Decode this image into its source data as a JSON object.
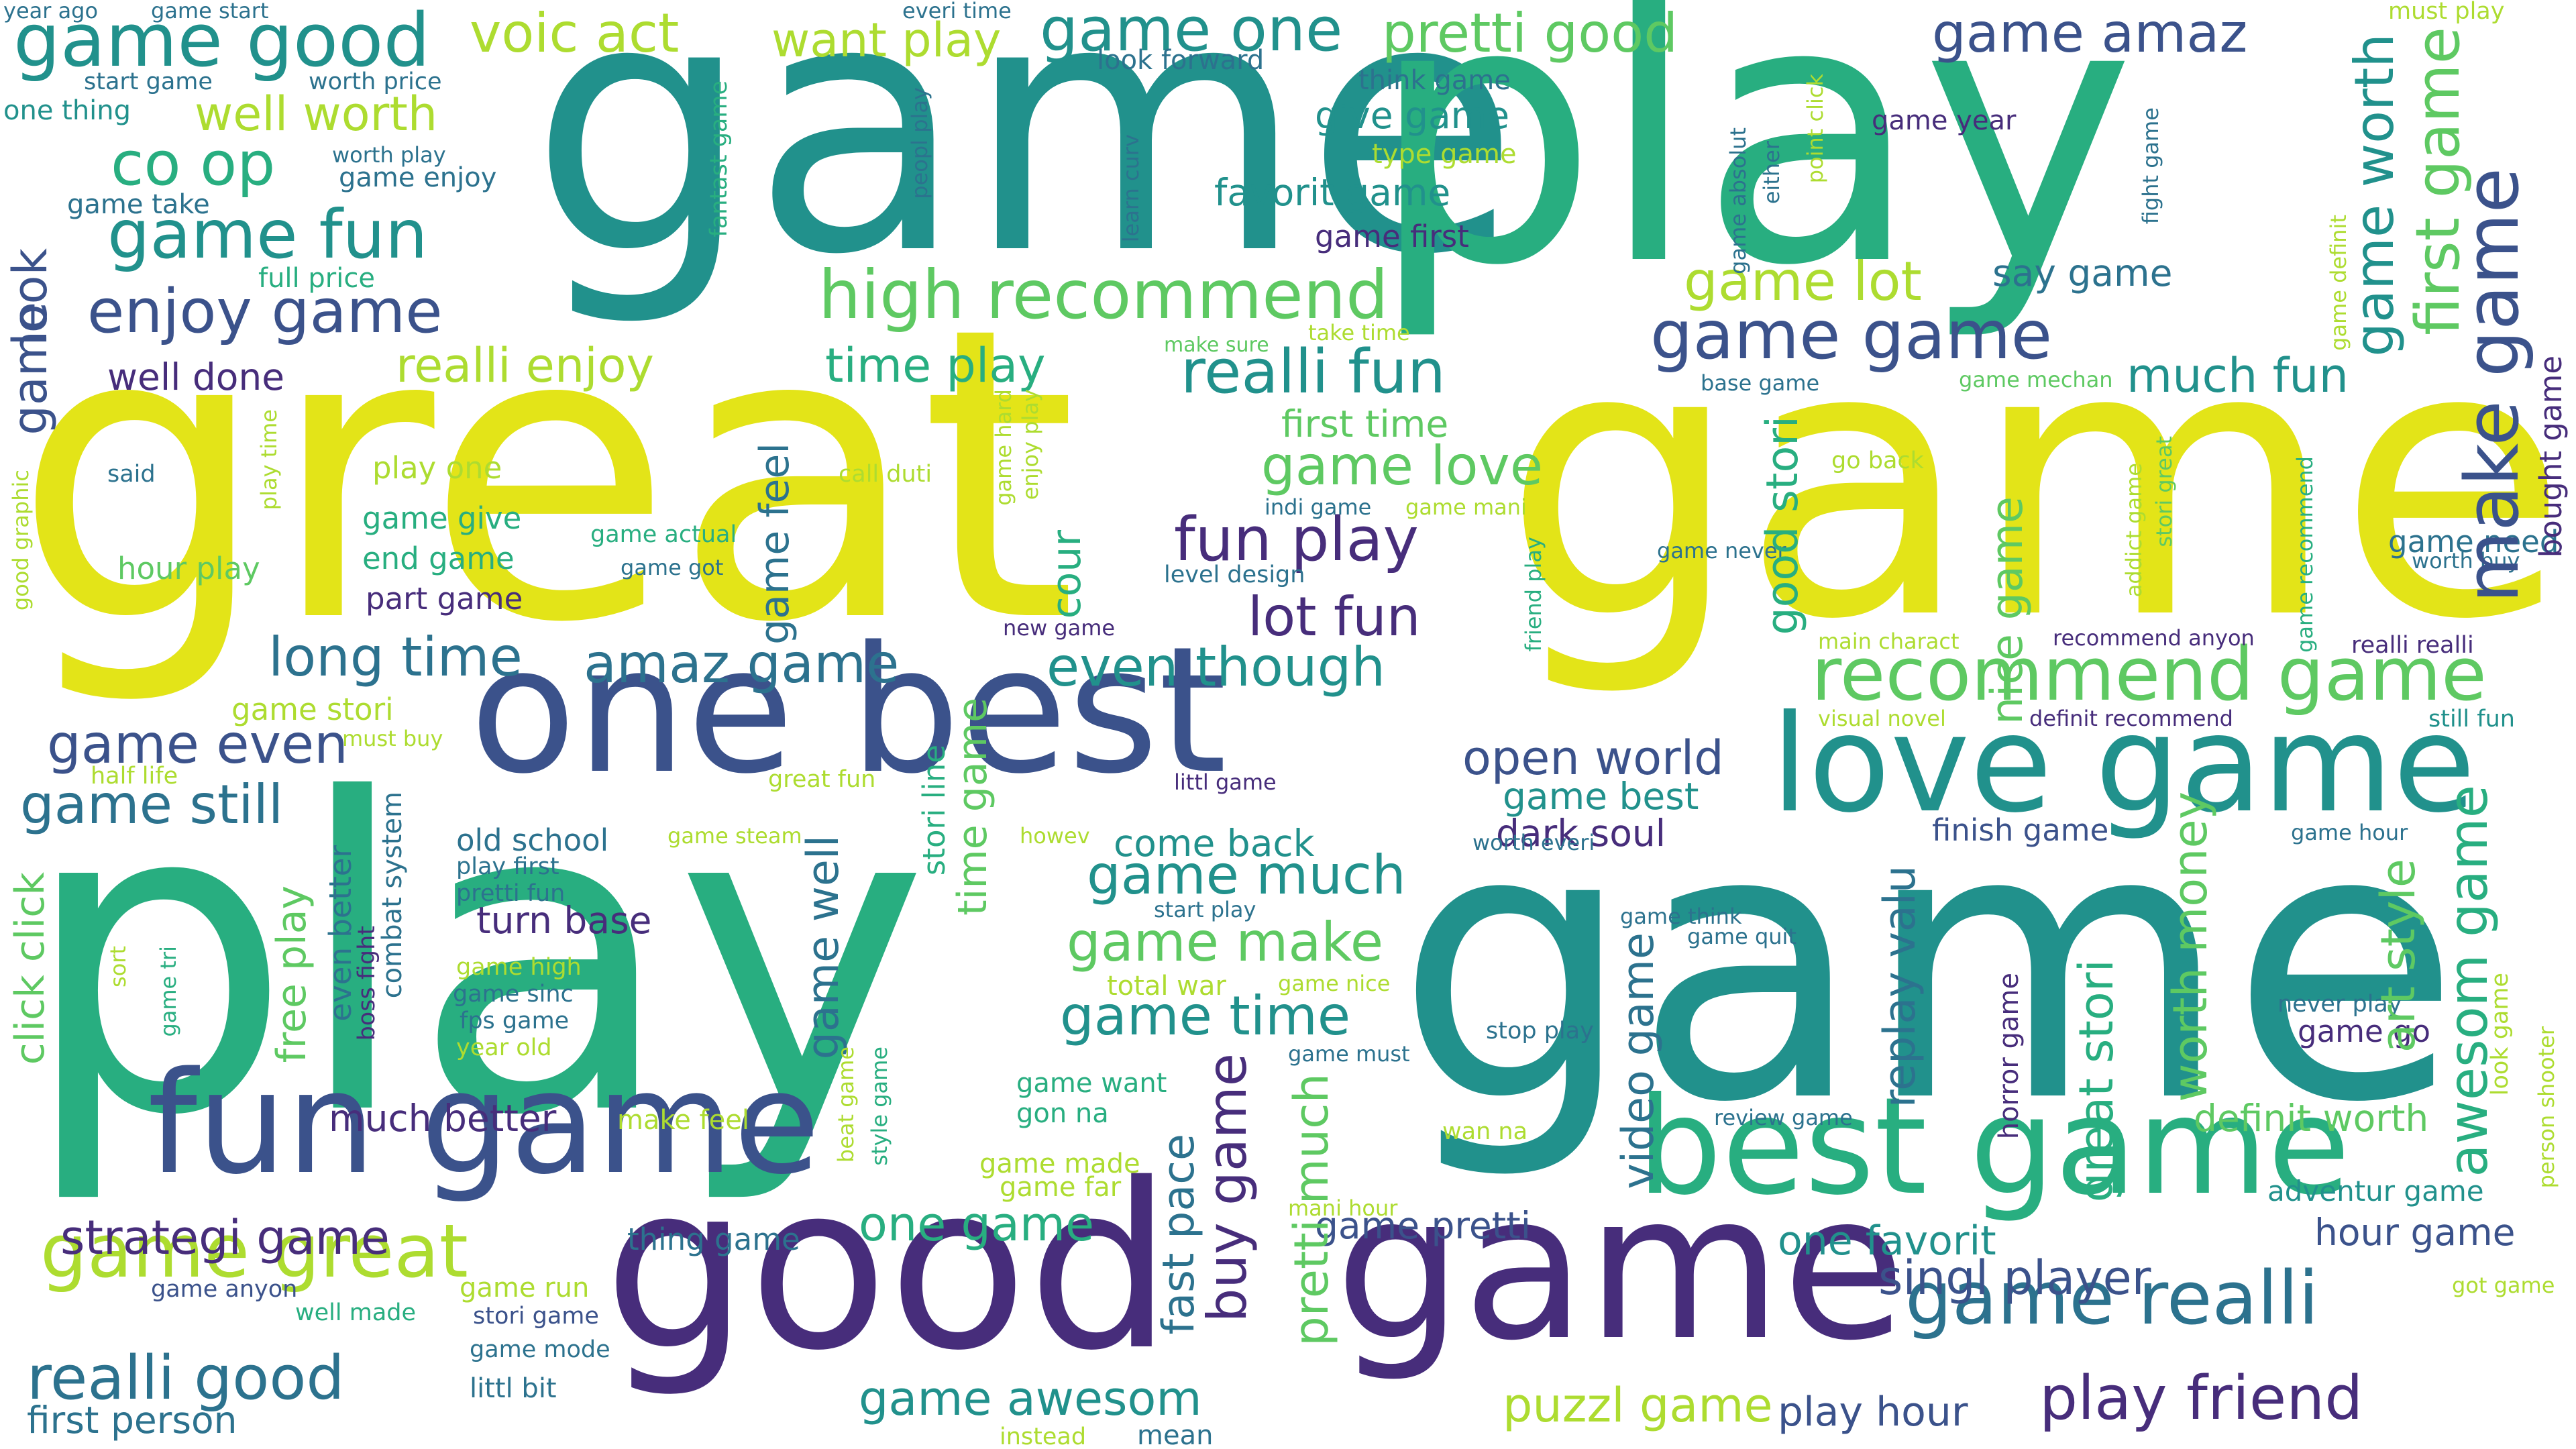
{
  "palette": {
    "dark_purple": "#472D7B",
    "indigo": "#3B528B",
    "steel_blue": "#2C728E",
    "teal": "#21918C",
    "green": "#28AE80",
    "light_green": "#5EC962",
    "lime": "#ADDC30",
    "yellow": "#E3E418"
  },
  "words": [
    {
      "text": "great",
      "color": "#E3E418",
      "size": 5
    },
    {
      "text": "game",
      "color": "#E3E418",
      "size": 5
    },
    {
      "text": "game",
      "color": "#21918C",
      "size": 5
    },
    {
      "text": "play",
      "color": "#28AE80",
      "size": 5
    },
    {
      "text": "play",
      "color": "#28AE80",
      "size": 5
    },
    {
      "text": "game",
      "color": "#21918C",
      "size": 5
    },
    {
      "text": "one best",
      "color": "#3B528B",
      "size": 4
    },
    {
      "text": "good",
      "color": "#472D7B",
      "size": 4
    },
    {
      "text": "game",
      "color": "#472D7B",
      "size": 4
    },
    {
      "text": "love game",
      "color": "#21918C",
      "size": 3
    },
    {
      "text": "best game",
      "color": "#28AE80",
      "size": 3
    },
    {
      "text": "fun game",
      "color": "#3B528B",
      "size": 3
    },
    {
      "text": "recommend game",
      "color": "#5EC962",
      "size": 2
    },
    {
      "text": "game great",
      "color": "#ADDC30",
      "size": 2
    },
    {
      "text": "game realli",
      "color": "#2C728E",
      "size": 2
    },
    {
      "text": "game good",
      "color": "#21918C",
      "size": 2
    },
    {
      "text": "high recommend",
      "color": "#5EC962",
      "size": 2
    },
    {
      "text": "game game",
      "color": "#3B528B",
      "size": 2
    },
    {
      "text": "game fun",
      "color": "#21918C",
      "size": 2
    },
    {
      "text": "play friend",
      "color": "#472D7B",
      "size": 2
    },
    {
      "text": "realli good",
      "color": "#2C728E",
      "size": 2
    },
    {
      "text": "game one",
      "color": "#21918C",
      "size": 2
    },
    {
      "text": "game amaz",
      "color": "#3B528B",
      "size": 2
    },
    {
      "text": "pretti good",
      "color": "#5EC962",
      "size": 2
    },
    {
      "text": "voic act",
      "color": "#ADDC30",
      "size": 2
    },
    {
      "text": "enjoy game",
      "color": "#3B528B",
      "size": 2
    },
    {
      "text": "co op",
      "color": "#28AE80",
      "size": 2
    },
    {
      "text": "well worth",
      "color": "#ADDC30",
      "size": 2
    },
    {
      "text": "realli fun",
      "color": "#21918C",
      "size": 2
    },
    {
      "text": "fun play",
      "color": "#472D7B",
      "size": 2
    },
    {
      "text": "lot fun",
      "color": "#472D7B",
      "size": 2
    },
    {
      "text": "amaz game",
      "color": "#2C728E",
      "size": 2
    },
    {
      "text": "even though",
      "color": "#21918C",
      "size": 2
    },
    {
      "text": "long time",
      "color": "#2C728E",
      "size": 2
    },
    {
      "text": "open world",
      "color": "#3B528B",
      "size": 2
    },
    {
      "text": "game love",
      "color": "#5EC962",
      "size": 2
    },
    {
      "text": "time play",
      "color": "#28AE80",
      "size": 2
    },
    {
      "text": "realli enjoy",
      "color": "#ADDC30",
      "size": 2
    },
    {
      "text": "game lot",
      "color": "#ADDC30",
      "size": 2
    },
    {
      "text": "much fun",
      "color": "#21918C",
      "size": 2
    },
    {
      "text": "game still",
      "color": "#2C728E",
      "size": 2
    },
    {
      "text": "game even",
      "color": "#3B528B",
      "size": 2
    },
    {
      "text": "game much",
      "color": "#21918C",
      "size": 2
    },
    {
      "text": "game make",
      "color": "#5EC962",
      "size": 2
    },
    {
      "text": "game time",
      "color": "#21918C",
      "size": 2
    },
    {
      "text": "strategi game",
      "color": "#472D7B",
      "size": 2
    },
    {
      "text": "singl player",
      "color": "#3B528B",
      "size": 2
    },
    {
      "text": "puzzl game",
      "color": "#ADDC30",
      "size": 2
    },
    {
      "text": "game awesom",
      "color": "#21918C",
      "size": 2
    },
    {
      "text": "one game",
      "color": "#28AE80",
      "size": 2
    },
    {
      "text": "game pretti",
      "color": "#3B528B",
      "size": 1
    },
    {
      "text": "one favorit",
      "color": "#21918C",
      "size": 1
    },
    {
      "text": "definit worth",
      "color": "#5EC962",
      "size": 1
    },
    {
      "text": "hour game",
      "color": "#3B528B",
      "size": 1
    },
    {
      "text": "play hour",
      "color": "#3B528B",
      "size": 1
    },
    {
      "text": "first person",
      "color": "#2C728E",
      "size": 1
    },
    {
      "text": "turn base",
      "color": "#472D7B",
      "size": 1
    },
    {
      "text": "much better",
      "color": "#472D7B",
      "size": 1
    },
    {
      "text": "dark soul",
      "color": "#472D7B",
      "size": 1
    },
    {
      "text": "come back",
      "color": "#21918C",
      "size": 1
    },
    {
      "text": "game best",
      "color": "#21918C",
      "size": 1
    },
    {
      "text": "well done",
      "color": "#472D7B",
      "size": 1
    },
    {
      "text": "favorit game",
      "color": "#21918C",
      "size": 1
    },
    {
      "text": "give game",
      "color": "#21918C",
      "size": 1
    },
    {
      "text": "first time",
      "color": "#5EC962",
      "size": 1
    },
    {
      "text": "say game",
      "color": "#2C728E",
      "size": 1
    },
    {
      "text": "game first",
      "color": "#472D7B",
      "size": 1
    },
    {
      "text": "game stori",
      "color": "#ADDC30",
      "size": 1
    },
    {
      "text": "finish game",
      "color": "#3B528B",
      "size": 1
    },
    {
      "text": "adventur game",
      "color": "#21918C",
      "size": 1
    },
    {
      "text": "part game",
      "color": "#472D7B",
      "size": 1
    },
    {
      "text": "end game",
      "color": "#28AE80",
      "size": 1
    },
    {
      "text": "hour play",
      "color": "#5EC962",
      "size": 1
    },
    {
      "text": "game give",
      "color": "#28AE80",
      "size": 1
    },
    {
      "text": "play one",
      "color": "#ADDC30",
      "size": 1
    },
    {
      "text": "game need",
      "color": "#2C728E",
      "size": 1
    },
    {
      "text": "still fun",
      "color": "#21918C",
      "size": 1
    },
    {
      "text": "realli realli",
      "color": "#472D7B",
      "size": 1
    },
    {
      "text": "game year",
      "color": "#472D7B",
      "size": 1
    },
    {
      "text": "game enjoy",
      "color": "#2C728E",
      "size": 1
    },
    {
      "text": "game take",
      "color": "#2C728E",
      "size": 1
    },
    {
      "text": "full price",
      "color": "#28AE80",
      "size": 1
    },
    {
      "text": "start game",
      "color": "#2C728E",
      "size": 1
    },
    {
      "text": "worth price",
      "color": "#2C728E",
      "size": 1
    },
    {
      "text": "one thing",
      "color": "#21918C",
      "size": 1
    },
    {
      "text": "year ago",
      "color": "#2C728E",
      "size": 1
    },
    {
      "text": "game start",
      "color": "#2C728E",
      "size": 1
    },
    {
      "text": "everi time",
      "color": "#2C728E",
      "size": 1
    },
    {
      "text": "worth play",
      "color": "#2C728E",
      "size": 1
    },
    {
      "text": "want play",
      "color": "#ADDC30",
      "size": 1
    },
    {
      "text": "look forward",
      "color": "#2C728E",
      "size": 1
    },
    {
      "text": "think game",
      "color": "#2C728E",
      "size": 1
    },
    {
      "text": "type game",
      "color": "#ADDC30",
      "size": 1
    },
    {
      "text": "must play",
      "color": "#ADDC30",
      "size": 1
    },
    {
      "text": "half life",
      "color": "#ADDC30",
      "size": 1
    },
    {
      "text": "old school",
      "color": "#2C728E",
      "size": 1
    },
    {
      "text": "pretti fun",
      "color": "#2C728E",
      "size": 1
    },
    {
      "text": "play first",
      "color": "#2C728E",
      "size": 1
    },
    {
      "text": "game high",
      "color": "#ADDC30",
      "size": 1
    },
    {
      "text": "game sinc",
      "color": "#2C728E",
      "size": 1
    },
    {
      "text": "fps game",
      "color": "#2C728E",
      "size": 1
    },
    {
      "text": "year old",
      "color": "#ADDC30",
      "size": 1
    },
    {
      "text": "make feel",
      "color": "#ADDC30",
      "size": 1
    },
    {
      "text": "game run",
      "color": "#ADDC30",
      "size": 1
    },
    {
      "text": "stori game",
      "color": "#3B528B",
      "size": 1
    },
    {
      "text": "game mode",
      "color": "#2C728E",
      "size": 1
    },
    {
      "text": "littl bit",
      "color": "#2C728E",
      "size": 1
    },
    {
      "text": "well made",
      "color": "#28AE80",
      "size": 1
    },
    {
      "text": "game anyon",
      "color": "#3B528B",
      "size": 1
    },
    {
      "text": "thing game",
      "color": "#2C728E",
      "size": 1
    },
    {
      "text": "instead",
      "color": "#ADDC30",
      "size": 1
    },
    {
      "text": "mean",
      "color": "#2C728E",
      "size": 1
    },
    {
      "text": "total war",
      "color": "#ADDC30",
      "size": 1
    },
    {
      "text": "game nice",
      "color": "#ADDC30",
      "size": 1
    },
    {
      "text": "game want",
      "color": "#28AE80",
      "size": 1
    },
    {
      "text": "gon na",
      "color": "#28AE80",
      "size": 1
    },
    {
      "text": "game made",
      "color": "#ADDC30",
      "size": 1
    },
    {
      "text": "game far",
      "color": "#ADDC30",
      "size": 1
    },
    {
      "text": "mani hour",
      "color": "#ADDC30",
      "size": 1
    },
    {
      "text": "game must",
      "color": "#2C728E",
      "size": 1
    },
    {
      "text": "start play",
      "color": "#2C728E",
      "size": 1
    },
    {
      "text": "stop play",
      "color": "#2C728E",
      "size": 1
    },
    {
      "text": "wan na",
      "color": "#ADDC30",
      "size": 1
    },
    {
      "text": "review game",
      "color": "#2C728E",
      "size": 1
    },
    {
      "text": "game think",
      "color": "#2C728E",
      "size": 1
    },
    {
      "text": "game quit",
      "color": "#2C728E",
      "size": 1
    },
    {
      "text": "worth everi",
      "color": "#2C728E",
      "size": 1
    },
    {
      "text": "game steam",
      "color": "#ADDC30",
      "size": 1
    },
    {
      "text": "great fun",
      "color": "#ADDC30",
      "size": 1
    },
    {
      "text": "littl game",
      "color": "#472D7B",
      "size": 1
    },
    {
      "text": "howev",
      "color": "#ADDC30",
      "size": 1
    },
    {
      "text": "new game",
      "color": "#472D7B",
      "size": 1
    },
    {
      "text": "must buy",
      "color": "#ADDC30",
      "size": 1
    },
    {
      "text": "game hour",
      "color": "#2C728E",
      "size": 1
    },
    {
      "text": "never play",
      "color": "#2C728E",
      "size": 1
    },
    {
      "text": "game go",
      "color": "#472D7B",
      "size": 1
    },
    {
      "text": "got game",
      "color": "#ADDC30",
      "size": 1
    },
    {
      "text": "visual novel",
      "color": "#ADDC30",
      "size": 1
    },
    {
      "text": "definit recommend",
      "color": "#472D7B",
      "size": 1
    },
    {
      "text": "main charact",
      "color": "#ADDC30",
      "size": 1
    },
    {
      "text": "recommend anyon",
      "color": "#472D7B",
      "size": 1
    },
    {
      "text": "game never",
      "color": "#2C728E",
      "size": 1
    },
    {
      "text": "worth buy",
      "color": "#2C728E",
      "size": 1
    },
    {
      "text": "go back",
      "color": "#ADDC30",
      "size": 1
    },
    {
      "text": "level design",
      "color": "#2C728E",
      "size": 1
    },
    {
      "text": "indi game",
      "color": "#2C728E",
      "size": 1
    },
    {
      "text": "game mani",
      "color": "#ADDC30",
      "size": 1
    },
    {
      "text": "game actual",
      "color": "#28AE80",
      "size": 1
    },
    {
      "text": "game got",
      "color": "#2C728E",
      "size": 1
    },
    {
      "text": "call duti",
      "color": "#ADDC30",
      "size": 1
    },
    {
      "text": "said",
      "color": "#2C728E",
      "size": 1
    },
    {
      "text": "base game",
      "color": "#2C728E",
      "size": 1
    },
    {
      "text": "game mechan",
      "color": "#5EC962",
      "size": 1
    },
    {
      "text": "make sure",
      "color": "#5EC962",
      "size": 1
    },
    {
      "text": "take time",
      "color": "#ADDC30",
      "size": 1
    },
    {
      "text": "look",
      "color": "#3B528B",
      "size": 2
    },
    {
      "text": "game",
      "color": "#3B528B",
      "size": 2
    },
    {
      "text": "make game",
      "color": "#3B528B",
      "size": 2
    },
    {
      "text": "first game",
      "color": "#5EC962",
      "size": 2
    },
    {
      "text": "game worth",
      "color": "#21918C",
      "size": 2
    },
    {
      "text": "awesom game",
      "color": "#28AE80",
      "size": 2
    },
    {
      "text": "art style",
      "color": "#5EC962",
      "size": 2
    },
    {
      "text": "worth money",
      "color": "#5EC962",
      "size": 2
    },
    {
      "text": "great stori",
      "color": "#28AE80",
      "size": 2
    },
    {
      "text": "replay valu",
      "color": "#2C728E",
      "size": 2
    },
    {
      "text": "nice game",
      "color": "#5EC962",
      "size": 2
    },
    {
      "text": "good stori",
      "color": "#28AE80",
      "size": 2
    },
    {
      "text": "video game",
      "color": "#2C728E",
      "size": 2
    },
    {
      "text": "pretti much",
      "color": "#5EC962",
      "size": 2
    },
    {
      "text": "buy game",
      "color": "#472D7B",
      "size": 2
    },
    {
      "text": "fast pace",
      "color": "#2C728E",
      "size": 2
    },
    {
      "text": "game well",
      "color": "#2C728E",
      "size": 2
    },
    {
      "text": "game feel",
      "color": "#2C728E",
      "size": 2
    },
    {
      "text": "cour",
      "color": "#28AE80",
      "size": 2
    },
    {
      "text": "time game",
      "color": "#5EC962",
      "size": 2
    },
    {
      "text": "stori line",
      "color": "#28AE80",
      "size": 1
    },
    {
      "text": "click click",
      "color": "#5EC962",
      "size": 2
    },
    {
      "text": "free play",
      "color": "#5EC962",
      "size": 2
    },
    {
      "text": "even better",
      "color": "#2C728E",
      "size": 1
    },
    {
      "text": "boss fight",
      "color": "#472D7B",
      "size": 1
    },
    {
      "text": "combat system",
      "color": "#2C728E",
      "size": 1
    },
    {
      "text": "bought game",
      "color": "#472D7B",
      "size": 1
    },
    {
      "text": "fantast game",
      "color": "#28AE80",
      "size": 1
    },
    {
      "text": "game absolut",
      "color": "#2C728E",
      "size": 1
    },
    {
      "text": "either",
      "color": "#2C728E",
      "size": 1
    },
    {
      "text": "point click",
      "color": "#ADDC30",
      "size": 1
    },
    {
      "text": "fight game",
      "color": "#2C728E",
      "size": 1
    },
    {
      "text": "peopl play",
      "color": "#2C728E",
      "size": 1
    },
    {
      "text": "learn curv",
      "color": "#2C728E",
      "size": 1
    },
    {
      "text": "game hard",
      "color": "#ADDC30",
      "size": 1
    },
    {
      "text": "enjoy play",
      "color": "#ADDC30",
      "size": 1
    },
    {
      "text": "friend play",
      "color": "#28AE80",
      "size": 1
    },
    {
      "text": "stori great",
      "color": "#5EC962",
      "size": 1
    },
    {
      "text": "addict game",
      "color": "#ADDC30",
      "size": 1
    },
    {
      "text": "game recommend",
      "color": "#28AE80",
      "size": 1
    },
    {
      "text": "game definit",
      "color": "#ADDC30",
      "size": 1
    },
    {
      "text": "play time",
      "color": "#ADDC30",
      "size": 1
    },
    {
      "text": "good graphic",
      "color": "#ADDC30",
      "size": 1
    },
    {
      "text": "sort",
      "color": "#ADDC30",
      "size": 1
    },
    {
      "text": "game tri",
      "color": "#28AE80",
      "size": 1
    },
    {
      "text": "beat game",
      "color": "#ADDC30",
      "size": 1
    },
    {
      "text": "style game",
      "color": "#28AE80",
      "size": 1
    },
    {
      "text": "horror game",
      "color": "#472D7B",
      "size": 1
    },
    {
      "text": "look game",
      "color": "#ADDC30",
      "size": 1
    },
    {
      "text": "person shooter",
      "color": "#ADDC30",
      "size": 1
    }
  ]
}
